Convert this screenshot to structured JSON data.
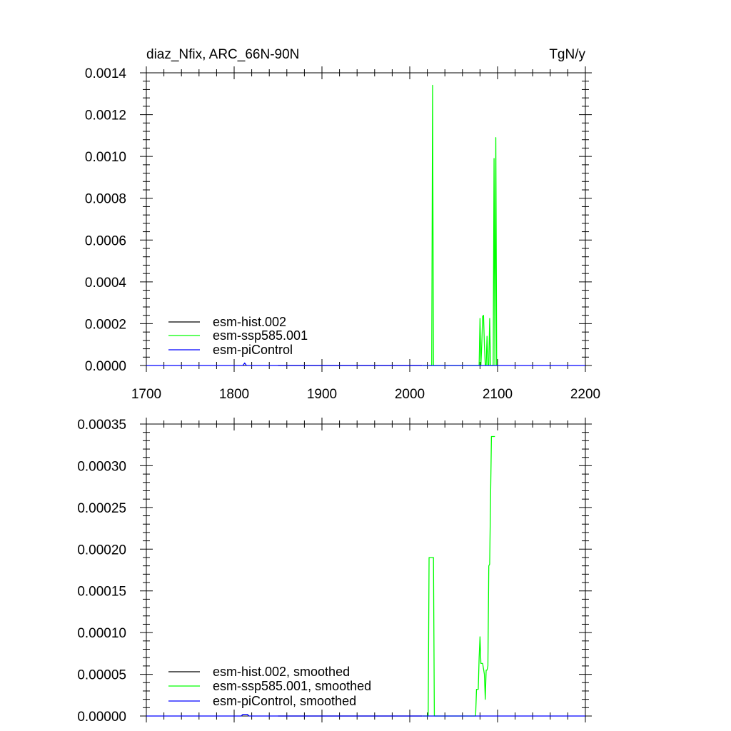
{
  "chart_data": [
    {
      "type": "line",
      "title_left": "diaz_Nfix, ARC_66N-90N",
      "title_right": "TgN/y",
      "xlim": [
        1700,
        2200
      ],
      "ylim": [
        0,
        0.0014
      ],
      "x_ticks": [
        1700,
        1800,
        1900,
        2000,
        2100,
        2200
      ],
      "x_tick_labels": [
        "1700",
        "1800",
        "1900",
        "2000",
        "2100",
        "2200"
      ],
      "y_ticks": [
        0,
        0.0002,
        0.0004,
        0.0006,
        0.0008,
        0.001,
        0.0012,
        0.0014
      ],
      "y_tick_labels": [
        "0.0000",
        "0.0002",
        "0.0004",
        "0.0006",
        "0.0008",
        "0.0010",
        "0.0012",
        "0.0014"
      ],
      "grid": false,
      "legend_position": "bottom-left",
      "series": [
        {
          "name": "esm-hist.002",
          "color": "#000000",
          "x": [
            1850,
            2014
          ],
          "y": [
            0,
            0
          ]
        },
        {
          "name": "esm-ssp585.001",
          "color": "#00ff00",
          "x": [
            2015,
            2025,
            2026,
            2027,
            2079,
            2080,
            2081,
            2082,
            2083,
            2084,
            2085,
            2086,
            2087,
            2088,
            2089,
            2090,
            2091,
            2092,
            2093,
            2094,
            2095,
            2096,
            2097,
            2098,
            2099,
            2100
          ],
          "y": [
            0,
            0,
            0.00134,
            0,
            0,
            0.000225,
            0,
            0.0001,
            0.000235,
            0.00024,
            0.0001,
            0,
            0,
            0.00014,
            0,
            0,
            0.000225,
            0,
            0,
            0,
            0,
            0.00099,
            0,
            0.00109,
            0,
            0
          ]
        },
        {
          "name": "esm-piControl",
          "color": "#0000ff",
          "x": [
            1700,
            1810,
            1812,
            1814,
            2200
          ],
          "y": [
            0,
            0,
            1.2e-05,
            0,
            0
          ]
        }
      ]
    },
    {
      "type": "line",
      "xlim": [
        1700,
        2200
      ],
      "ylim": [
        0,
        0.00035
      ],
      "x_ticks": [
        1700,
        1800,
        1900,
        2000,
        2100,
        2200
      ],
      "y_ticks": [
        0,
        5e-05,
        0.0001,
        0.00015,
        0.0002,
        0.00025,
        0.0003,
        0.00035
      ],
      "y_tick_labels": [
        "0.00000",
        "0.00005",
        "0.00010",
        "0.00015",
        "0.00020",
        "0.00025",
        "0.00030",
        "0.00035"
      ],
      "grid": false,
      "legend_position": "bottom-left",
      "series": [
        {
          "name": "esm-hist.002, smoothed",
          "color": "#000000",
          "x": [
            1850,
            2014
          ],
          "y": [
            0,
            0
          ]
        },
        {
          "name": "esm-ssp585.001, smoothed",
          "color": "#00ff00",
          "x": [
            2015,
            2021,
            2022,
            2027,
            2028,
            2075,
            2076,
            2078,
            2079,
            2080,
            2081,
            2083,
            2085,
            2086,
            2087,
            2088,
            2089,
            2090,
            2091,
            2093,
            2094,
            2095,
            2096,
            2097
          ],
          "y": [
            0,
            0,
            0.00019,
            0.00019,
            0,
            0,
            3.2e-05,
            3.2e-05,
            7e-05,
            9.5e-05,
            6.3e-05,
            6.3e-05,
            5e-05,
            2e-05,
            5.5e-05,
            5.5e-05,
            6e-05,
            0.00018,
            0.000182,
            0.000335,
            0.000335,
            0.000335,
            0.000335,
            0.000335
          ]
        },
        {
          "name": "esm-piControl, smoothed",
          "color": "#0000ff",
          "x": [
            1700,
            1808,
            1810,
            1815,
            1817,
            2200
          ],
          "y": [
            0,
            0,
            2e-06,
            2e-06,
            0,
            0
          ]
        }
      ]
    }
  ]
}
